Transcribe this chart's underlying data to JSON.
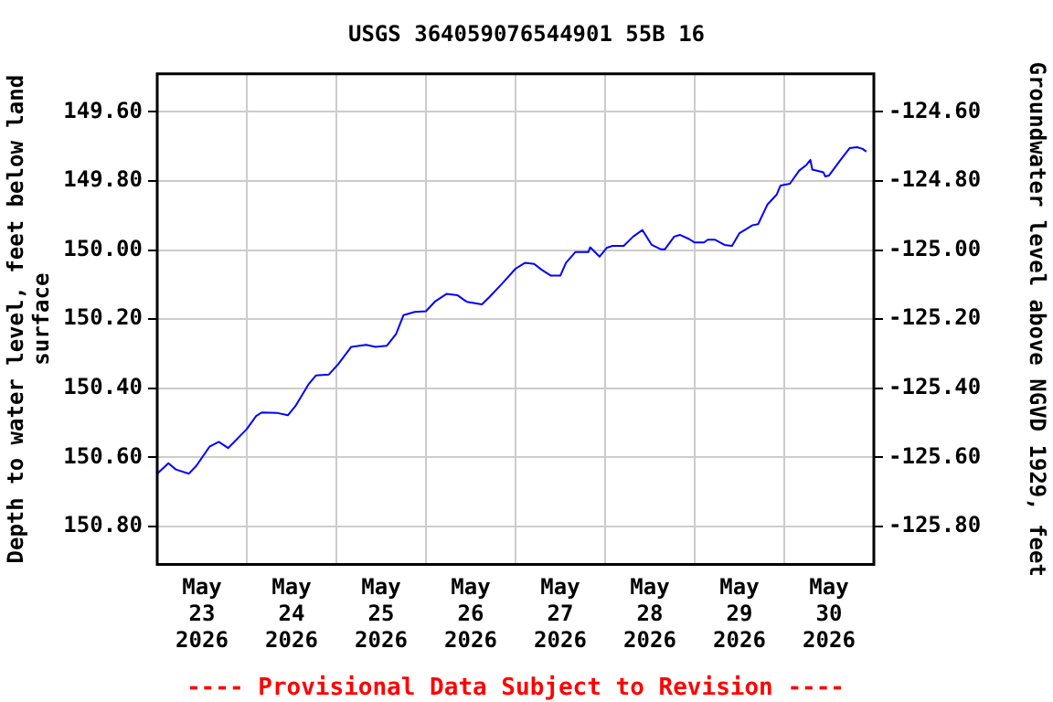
{
  "chart_data": {
    "type": "line",
    "title": "USGS 364059076544901 55B 16",
    "ylabel": "Depth to water level, feet below land surface",
    "y2label": "Groundwater level above NGVD 1929, feet",
    "annotations": [
      "---- Provisional Data Subject to Revision ----"
    ],
    "x": [
      "2026-05-23T00:00",
      "2026-05-23T03:00",
      "2026-05-23T05:00",
      "2026-05-23T08:30",
      "2026-05-23T10:30",
      "2026-05-23T14:00",
      "2026-05-23T16:30",
      "2026-05-23T19:00",
      "2026-05-24T00:00",
      "2026-05-24T02:30",
      "2026-05-24T04:00",
      "2026-05-24T08:00",
      "2026-05-24T11:00",
      "2026-05-24T13:00",
      "2026-05-24T16:30",
      "2026-05-24T18:30",
      "2026-05-24T22:00",
      "2026-05-25T00:30",
      "2026-05-25T04:00",
      "2026-05-25T08:00",
      "2026-05-25T10:30",
      "2026-05-25T13:30",
      "2026-05-25T16:00",
      "2026-05-25T18:00",
      "2026-05-25T21:00",
      "2026-05-26T00:00",
      "2026-05-26T02:30",
      "2026-05-26T05:30",
      "2026-05-26T08:30",
      "2026-05-26T11:00",
      "2026-05-26T15:00",
      "2026-05-26T17:00",
      "2026-05-26T20:30",
      "2026-05-27T00:00",
      "2026-05-27T02:30",
      "2026-05-27T05:00",
      "2026-05-27T07:00",
      "2026-05-27T09:30",
      "2026-05-27T12:00",
      "2026-05-27T13:30",
      "2026-05-27T16:00",
      "2026-05-27T19:30",
      "2026-05-27T20:00",
      "2026-05-27T22:30",
      "2026-05-28T00:30",
      "2026-05-28T02:00",
      "2026-05-28T05:00",
      "2026-05-28T07:30",
      "2026-05-28T10:00",
      "2026-05-28T12:30",
      "2026-05-28T15:00",
      "2026-05-28T16:00",
      "2026-05-28T18:30",
      "2026-05-28T20:00",
      "2026-05-28T22:30",
      "2026-05-29T00:00",
      "2026-05-29T02:30",
      "2026-05-29T03:30",
      "2026-05-29T05:30",
      "2026-05-29T08:00",
      "2026-05-29T10:00",
      "2026-05-29T12:00",
      "2026-05-29T15:30",
      "2026-05-29T17:00",
      "2026-05-29T19:30",
      "2026-05-29T22:00",
      "2026-05-29T23:00",
      "2026-05-30T01:30",
      "2026-05-30T04:00",
      "2026-05-30T06:00",
      "2026-05-30T07:00",
      "2026-05-30T07:30",
      "2026-05-30T10:30",
      "2026-05-30T11:00",
      "2026-05-30T12:00",
      "2026-05-30T15:00",
      "2026-05-30T17:30",
      "2026-05-30T19:30",
      "2026-05-30T21:00",
      "2026-05-30T22:00"
    ],
    "series": [
      {
        "color": "#0000ff",
        "values": [
          150.647,
          150.617,
          150.635,
          150.647,
          150.624,
          150.569,
          150.555,
          150.573,
          150.518,
          150.48,
          150.47,
          150.471,
          150.478,
          150.452,
          150.389,
          150.363,
          150.36,
          150.33,
          150.28,
          150.274,
          150.28,
          150.277,
          150.243,
          150.188,
          150.179,
          150.177,
          150.148,
          150.127,
          150.131,
          150.15,
          150.157,
          150.136,
          150.096,
          150.054,
          150.037,
          150.04,
          150.057,
          150.074,
          150.074,
          150.037,
          150.006,
          150.006,
          149.992,
          150.019,
          149.993,
          149.988,
          149.988,
          149.961,
          149.942,
          149.985,
          149.998,
          149.998,
          149.961,
          149.956,
          149.968,
          149.978,
          149.978,
          149.97,
          149.97,
          149.985,
          149.988,
          149.951,
          149.928,
          149.925,
          149.868,
          149.839,
          149.813,
          149.808,
          149.77,
          149.753,
          149.739,
          149.767,
          149.775,
          149.787,
          149.784,
          149.74,
          149.705,
          149.702,
          149.707,
          149.715
        ]
      }
    ],
    "xlim": [
      "2026-05-23T00:00",
      "2026-05-31T00:00"
    ],
    "xticks": [
      {
        "value": "2026-05-23T00:00",
        "label": null
      },
      {
        "value": "2026-05-23T12:00",
        "label": "May 23 2026"
      },
      {
        "value": "2026-05-24T00:00",
        "label": null
      },
      {
        "value": "2026-05-24T12:00",
        "label": "May 24 2026"
      },
      {
        "value": "2026-05-25T00:00",
        "label": null
      },
      {
        "value": "2026-05-25T12:00",
        "label": "May 25 2026"
      },
      {
        "value": "2026-05-26T00:00",
        "label": null
      },
      {
        "value": "2026-05-26T12:00",
        "label": "May 26 2026"
      },
      {
        "value": "2026-05-27T00:00",
        "label": null
      },
      {
        "value": "2026-05-27T12:00",
        "label": "May 27 2026"
      },
      {
        "value": "2026-05-28T00:00",
        "label": null
      },
      {
        "value": "2026-05-28T12:00",
        "label": "May 28 2026"
      },
      {
        "value": "2026-05-29T00:00",
        "label": null
      },
      {
        "value": "2026-05-29T12:00",
        "label": "May 29 2026"
      },
      {
        "value": "2026-05-30T00:00",
        "label": null
      },
      {
        "value": "2026-05-30T12:00",
        "label": "May 30 2026"
      },
      {
        "value": "2026-05-31T00:00",
        "label": null
      }
    ],
    "ylim": [
      150.91,
      149.49
    ],
    "yticks": [
      {
        "value": 149.6,
        "label": "149.60"
      },
      {
        "value": 149.8,
        "label": "149.80"
      },
      {
        "value": 150.0,
        "label": "150.00"
      },
      {
        "value": 150.2,
        "label": "150.20"
      },
      {
        "value": 150.4,
        "label": "150.40"
      },
      {
        "value": 150.6,
        "label": "150.60"
      },
      {
        "value": 150.8,
        "label": "150.80"
      }
    ],
    "y2lim": [
      -125.91,
      -124.49
    ],
    "y2ticks": [
      {
        "value": -124.6,
        "label": "-124.60"
      },
      {
        "value": -124.8,
        "label": "-124.80"
      },
      {
        "value": -125.0,
        "label": "-125.00"
      },
      {
        "value": -125.2,
        "label": "-125.20"
      },
      {
        "value": -125.4,
        "label": "-125.40"
      },
      {
        "value": -125.6,
        "label": "-125.60"
      },
      {
        "value": -125.8,
        "label": "-125.80"
      }
    ],
    "grid": true,
    "legend": false,
    "marker": "none",
    "line_style": "solid"
  }
}
